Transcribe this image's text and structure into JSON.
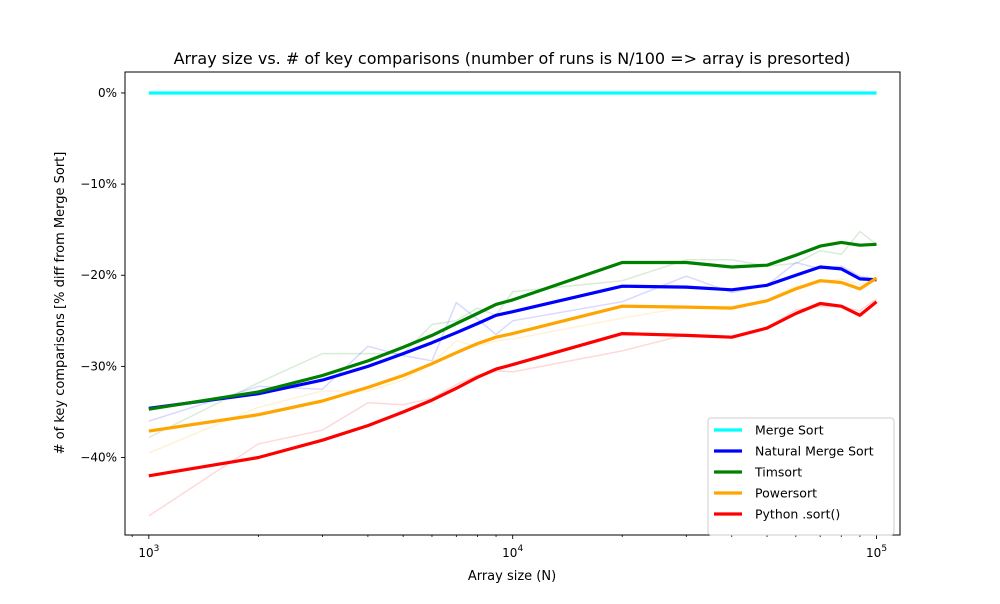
{
  "chart_data": {
    "type": "line",
    "title": "Array size vs. # of key comparisons (number of runs is N/100 => array is presorted)",
    "xlabel": "Array size (N)",
    "ylabel": "# of key comparisons [% diff from Merge Sort]",
    "xscale": "log",
    "xlim": [
      860,
      116000
    ],
    "ylim": [
      -48.5,
      2.3
    ],
    "x_ticks": [
      {
        "value": 1000,
        "base": "10",
        "exp": "3"
      },
      {
        "value": 10000,
        "base": "10",
        "exp": "4"
      },
      {
        "value": 100000,
        "base": "10",
        "exp": "5"
      }
    ],
    "y_ticks": [
      {
        "value": 0,
        "label": "0%"
      },
      {
        "value": -10,
        "label": "−10%"
      },
      {
        "value": -20,
        "label": "−20%"
      },
      {
        "value": -30,
        "label": "−30%"
      },
      {
        "value": -40,
        "label": "−40%"
      }
    ],
    "legend_position": "lower right",
    "grid": false,
    "series": [
      {
        "name": "Merge Sort",
        "color": "#00ffff",
        "x": [
          1000,
          100000
        ],
        "smooth": [
          0,
          0
        ],
        "raw": null
      },
      {
        "name": "Natural Merge Sort",
        "color": "#0000ff",
        "x": [
          1000,
          2000,
          3000,
          4000,
          5000,
          6000,
          7000,
          8000,
          9000,
          10000,
          20000,
          30000,
          40000,
          50000,
          60000,
          70000,
          80000,
          90000,
          100000
        ],
        "smooth": [
          -34.6,
          -33.0,
          -31.5,
          -30.0,
          -28.6,
          -27.4,
          -26.3,
          -25.3,
          -24.4,
          -24.0,
          -21.2,
          -21.3,
          -21.6,
          -21.1,
          -20.0,
          -19.1,
          -19.3,
          -20.4,
          -20.5
        ],
        "raw": [
          -36.0,
          -32.2,
          -32.5,
          -27.8,
          -28.8,
          -29.4,
          -23.0,
          -24.8,
          -26.5,
          -25.0,
          -22.9,
          -20.1,
          -21.9,
          -21.1,
          -18.6,
          -19.3,
          -19.0,
          -20.1,
          -20.4
        ]
      },
      {
        "name": "Timsort",
        "color": "#008000",
        "x": [
          1000,
          2000,
          3000,
          4000,
          5000,
          6000,
          7000,
          8000,
          9000,
          10000,
          20000,
          30000,
          40000,
          50000,
          60000,
          70000,
          80000,
          90000,
          100000
        ],
        "smooth": [
          -34.7,
          -32.8,
          -31.0,
          -29.4,
          -27.9,
          -26.6,
          -25.3,
          -24.2,
          -23.2,
          -22.7,
          -18.6,
          -18.6,
          -19.1,
          -18.9,
          -17.8,
          -16.8,
          -16.4,
          -16.7,
          -16.6
        ],
        "raw": [
          -37.8,
          -31.8,
          -28.6,
          -28.6,
          -28.6,
          -25.4,
          -25.0,
          -23.6,
          -24.4,
          -21.8,
          -20.6,
          -18.3,
          -18.3,
          -19.0,
          -18.7,
          -17.3,
          -17.7,
          -15.2,
          -16.6
        ]
      },
      {
        "name": "Powersort",
        "color": "#ffa500",
        "x": [
          1000,
          2000,
          3000,
          4000,
          5000,
          6000,
          7000,
          8000,
          9000,
          10000,
          20000,
          30000,
          40000,
          50000,
          60000,
          70000,
          80000,
          90000,
          100000
        ],
        "smooth": [
          -37.1,
          -35.3,
          -33.8,
          -32.3,
          -31.0,
          -29.7,
          -28.5,
          -27.5,
          -26.8,
          -26.4,
          -23.4,
          -23.5,
          -23.6,
          -22.8,
          -21.5,
          -20.6,
          -20.8,
          -21.5,
          -20.3
        ],
        "raw": [
          -39.5,
          -34.5,
          -32.7,
          -32.7,
          -31.5,
          -29.6,
          -27.2,
          -27.8,
          -27.2,
          -27.0,
          -24.7,
          -23.5,
          -23.4,
          -22.7,
          -21.2,
          -20.8,
          -20.4,
          -21.0,
          -20.4
        ]
      },
      {
        "name": "Python .sort()",
        "color": "#ff0000",
        "x": [
          1000,
          2000,
          3000,
          4000,
          5000,
          6000,
          7000,
          8000,
          9000,
          10000,
          20000,
          30000,
          40000,
          50000,
          60000,
          70000,
          80000,
          90000,
          100000
        ],
        "smooth": [
          -42.0,
          -40.0,
          -38.1,
          -36.5,
          -35.0,
          -33.7,
          -32.4,
          -31.2,
          -30.3,
          -29.8,
          -26.4,
          -26.6,
          -26.8,
          -25.8,
          -24.2,
          -23.1,
          -23.4,
          -24.4,
          -22.9
        ],
        "raw": [
          -46.4,
          -38.5,
          -37.0,
          -34.0,
          -34.2,
          -33.5,
          -32.0,
          -31.0,
          -30.5,
          -30.6,
          -28.3,
          -26.5,
          -26.9,
          -25.8,
          -23.8,
          -23.4,
          -23.5,
          -23.9,
          -22.6
        ]
      }
    ]
  }
}
